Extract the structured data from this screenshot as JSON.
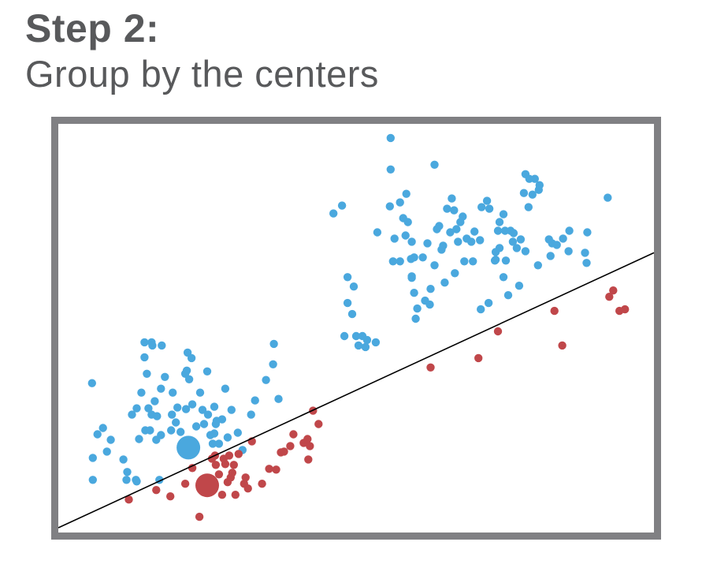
{
  "heading": {
    "step_label": "Step 2:",
    "subtitle": "Group by the centers"
  },
  "colors": {
    "blue": "#4aa8de",
    "red": "#c0474a",
    "frame": "#808083",
    "line": "#000000",
    "text": "#58595b"
  },
  "chart_data": {
    "type": "scatter",
    "xlim": [
      0,
      760
    ],
    "ylim": [
      0,
      520
    ],
    "decision_line": [
      [
        0,
        6
      ],
      [
        760,
        356
      ]
    ],
    "centers": [
      {
        "group": "blue",
        "x": 166,
        "y": 108
      },
      {
        "group": "red",
        "x": 190,
        "y": 60
      }
    ],
    "series": [
      {
        "group": "blue",
        "points": [
          [
            43,
            190
          ],
          [
            44,
            95
          ],
          [
            50,
            125
          ],
          [
            44,
            67
          ],
          [
            62,
            103
          ],
          [
            67,
            118
          ],
          [
            87,
            67
          ],
          [
            94,
            150
          ],
          [
            99,
            67
          ],
          [
            100,
            158
          ],
          [
            103,
            119
          ],
          [
            106,
            178
          ],
          [
            111,
            130
          ],
          [
            113,
            202
          ],
          [
            115,
            158
          ],
          [
            117,
            130
          ],
          [
            120,
            238
          ],
          [
            123,
            167
          ],
          [
            119,
            150
          ],
          [
            125,
            118
          ],
          [
            129,
            67
          ],
          [
            126,
            148
          ],
          [
            131,
            124
          ],
          [
            136,
            198
          ],
          [
            144,
            130
          ],
          [
            145,
            150
          ],
          [
            146,
            178
          ],
          [
            150,
            140
          ],
          [
            165,
            229
          ],
          [
            164,
            206
          ],
          [
            167,
            195
          ],
          [
            181,
            178
          ],
          [
            186,
            138
          ],
          [
            194,
            124
          ],
          [
            190,
            205
          ],
          [
            191,
            150
          ],
          [
            199,
            160
          ],
          [
            199,
            126
          ],
          [
            201,
            138
          ],
          [
            205,
            113
          ],
          [
            209,
            144
          ],
          [
            213,
            183
          ],
          [
            221,
            156
          ],
          [
            229,
            127
          ],
          [
            235,
            105
          ],
          [
            246,
            150
          ],
          [
            251,
            168
          ],
          [
            265,
            194
          ],
          [
            274,
            214
          ],
          [
            275,
            240
          ],
          [
            281,
            170
          ],
          [
            216,
            121
          ],
          [
            110,
            242
          ],
          [
            119,
            242
          ],
          [
            132,
            238
          ],
          [
            131,
            183
          ],
          [
            156,
            128
          ],
          [
            110,
            223
          ],
          [
            88,
            77
          ],
          [
            100,
            65
          ],
          [
            83,
            93
          ],
          [
            57,
            133
          ],
          [
            170,
            222
          ],
          [
            162,
            202
          ],
          [
            152,
            159
          ],
          [
            171,
            163
          ],
          [
            176,
            135
          ],
          [
            184,
            156
          ],
          [
            202,
            142
          ],
          [
            197,
            113
          ],
          [
            163,
            157
          ],
          [
            351,
            406
          ],
          [
            362,
            416
          ],
          [
            369,
            292
          ],
          [
            365,
            250
          ],
          [
            369,
            325
          ],
          [
            375,
            278
          ],
          [
            377,
            313
          ],
          [
            380,
            250
          ],
          [
            383,
            238
          ],
          [
            388,
            250
          ],
          [
            392,
            236
          ],
          [
            394,
            245
          ],
          [
            405,
            242
          ],
          [
            407,
            382
          ],
          [
            424,
            462
          ],
          [
            424,
            502
          ],
          [
            423,
            415
          ],
          [
            427,
            345
          ],
          [
            429,
            374
          ],
          [
            436,
            345
          ],
          [
            436,
            420
          ],
          [
            440,
            400
          ],
          [
            444,
            431
          ],
          [
            443,
            378
          ],
          [
            446,
            395
          ],
          [
            450,
            348
          ],
          [
            451,
            324
          ],
          [
            454,
            350
          ],
          [
            451,
            370
          ],
          [
            454,
            305
          ],
          [
            456,
            272
          ],
          [
            458,
            285
          ],
          [
            465,
            350
          ],
          [
            468,
            295
          ],
          [
            471,
            368
          ],
          [
            474,
            290
          ],
          [
            480,
            340
          ],
          [
            480,
            468
          ],
          [
            483,
            386
          ],
          [
            489,
            360
          ],
          [
            486,
            390
          ],
          [
            491,
            365
          ],
          [
            493,
            318
          ],
          [
            496,
            412
          ],
          [
            500,
            382
          ],
          [
            502,
            425
          ],
          [
            505,
            410
          ],
          [
            506,
            330
          ],
          [
            508,
            386
          ],
          [
            510,
            370
          ],
          [
            513,
            395
          ],
          [
            516,
            402
          ],
          [
            521,
            374
          ],
          [
            518,
            345
          ],
          [
            527,
            370
          ],
          [
            529,
            345
          ],
          [
            531,
            383
          ],
          [
            538,
            372
          ],
          [
            540,
            414
          ],
          [
            547,
            422
          ],
          [
            550,
            412
          ],
          [
            557,
            346
          ],
          [
            563,
            395
          ],
          [
            568,
            405
          ],
          [
            570,
            384
          ],
          [
            577,
            384
          ],
          [
            580,
            370
          ],
          [
            585,
            362
          ],
          [
            590,
            373
          ],
          [
            594,
            432
          ],
          [
            596,
            358
          ],
          [
            600,
            414
          ],
          [
            605,
            430
          ],
          [
            612,
            340
          ],
          [
            608,
            450
          ],
          [
            613,
            436
          ],
          [
            626,
            373
          ],
          [
            636,
            366
          ],
          [
            644,
            374
          ],
          [
            651,
            358
          ],
          [
            652,
            384
          ],
          [
            561,
            384
          ],
          [
            563,
            362
          ],
          [
            558,
            357
          ],
          [
            568,
            325
          ],
          [
            574,
            302
          ],
          [
            588,
            314
          ],
          [
            596,
            456
          ],
          [
            601,
            450
          ],
          [
            614,
            442
          ],
          [
            628,
            352
          ],
          [
            630,
            368
          ],
          [
            672,
            356
          ],
          [
            674,
            343
          ],
          [
            675,
            382
          ],
          [
            701,
            426
          ],
          [
            475,
            310
          ],
          [
            539,
            284
          ],
          [
            549,
            292
          ],
          [
            558,
            347
          ],
          [
            571,
            346
          ],
          [
            581,
            381
          ],
          [
            451,
            326
          ]
        ]
      },
      {
        "group": "red",
        "points": [
          [
            90,
            42
          ],
          [
            125,
            54
          ],
          [
            143,
            46
          ],
          [
            162,
            62
          ],
          [
            171,
            82
          ],
          [
            180,
            20
          ],
          [
            194,
            68
          ],
          [
            196,
            94
          ],
          [
            200,
            98
          ],
          [
            201,
            86
          ],
          [
            205,
            74
          ],
          [
            209,
            48
          ],
          [
            211,
            94
          ],
          [
            213,
            87
          ],
          [
            216,
            64
          ],
          [
            218,
            98
          ],
          [
            220,
            70
          ],
          [
            222,
            76
          ],
          [
            224,
            86
          ],
          [
            226,
            48
          ],
          [
            230,
            100
          ],
          [
            237,
            62
          ],
          [
            239,
            70
          ],
          [
            242,
            56
          ],
          [
            247,
            116
          ],
          [
            260,
            62
          ],
          [
            269,
            81
          ],
          [
            278,
            80
          ],
          [
            284,
            102
          ],
          [
            288,
            103
          ],
          [
            296,
            110
          ],
          [
            300,
            125
          ],
          [
            313,
            114
          ],
          [
            318,
            119
          ],
          [
            321,
            110
          ],
          [
            332,
            138
          ],
          [
            319,
            93
          ],
          [
            325,
            155
          ],
          [
            475,
            210
          ],
          [
            536,
            222
          ],
          [
            561,
            256
          ],
          [
            643,
            238
          ],
          [
            633,
            282
          ],
          [
            703,
            300
          ],
          [
            716,
            282
          ],
          [
            708,
            308
          ],
          [
            723,
            284
          ]
        ]
      }
    ]
  }
}
